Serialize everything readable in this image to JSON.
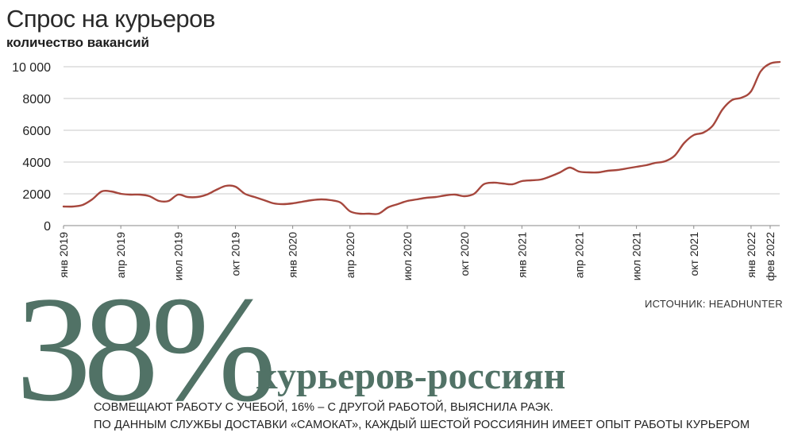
{
  "chart_data": {
    "type": "line",
    "title": "Спрос на курьеров",
    "subtitle": "количество вакансий",
    "xlabel": "",
    "ylabel": "",
    "ylim": [
      0,
      10000
    ],
    "yticks": [
      {
        "value": 0,
        "label": "0"
      },
      {
        "value": 2000,
        "label": "2000"
      },
      {
        "value": 4000,
        "label": "4000"
      },
      {
        "value": 6000,
        "label": "6000"
      },
      {
        "value": 8000,
        "label": "8000"
      },
      {
        "value": 10000,
        "label": "10 000"
      }
    ],
    "xticks": [
      {
        "x": 0,
        "label": "янв 2019"
      },
      {
        "x": 3,
        "label": "апр 2019"
      },
      {
        "x": 6,
        "label": "июл 2019"
      },
      {
        "x": 9,
        "label": "окт 2019"
      },
      {
        "x": 12,
        "label": "янв 2020"
      },
      {
        "x": 15,
        "label": "апр 2020"
      },
      {
        "x": 18,
        "label": "июл 2020"
      },
      {
        "x": 21,
        "label": "окт 2020"
      },
      {
        "x": 24,
        "label": "янв 2021"
      },
      {
        "x": 27,
        "label": "апр 2021"
      },
      {
        "x": 30,
        "label": "июл 2021"
      },
      {
        "x": 33,
        "label": "окт 2021"
      },
      {
        "x": 36,
        "label": "янв 2022"
      },
      {
        "x": 37,
        "label": "фев 2022"
      }
    ],
    "grid": true,
    "color": "#a6473d",
    "series": [
      {
        "points": [
          [
            0,
            1200
          ],
          [
            0.5,
            1200
          ],
          [
            1,
            1300
          ],
          [
            1.5,
            1650
          ],
          [
            2,
            2150
          ],
          [
            2.5,
            2150
          ],
          [
            3,
            2000
          ],
          [
            3.5,
            1950
          ],
          [
            4,
            1950
          ],
          [
            4.5,
            1850
          ],
          [
            5,
            1550
          ],
          [
            5.5,
            1550
          ],
          [
            6,
            1950
          ],
          [
            6.5,
            1800
          ],
          [
            7,
            1800
          ],
          [
            7.5,
            1950
          ],
          [
            8,
            2250
          ],
          [
            8.5,
            2500
          ],
          [
            9,
            2450
          ],
          [
            9.5,
            2000
          ],
          [
            10,
            1800
          ],
          [
            10.5,
            1600
          ],
          [
            11,
            1400
          ],
          [
            11.5,
            1350
          ],
          [
            12,
            1400
          ],
          [
            12.5,
            1500
          ],
          [
            13,
            1600
          ],
          [
            13.5,
            1650
          ],
          [
            14,
            1600
          ],
          [
            14.5,
            1450
          ],
          [
            15,
            900
          ],
          [
            15.5,
            750
          ],
          [
            16,
            750
          ],
          [
            16.5,
            750
          ],
          [
            17,
            1150
          ],
          [
            17.5,
            1350
          ],
          [
            18,
            1550
          ],
          [
            18.5,
            1650
          ],
          [
            19,
            1750
          ],
          [
            19.5,
            1800
          ],
          [
            20,
            1900
          ],
          [
            20.5,
            1950
          ],
          [
            21,
            1850
          ],
          [
            21.5,
            2000
          ],
          [
            22,
            2600
          ],
          [
            22.5,
            2700
          ],
          [
            23,
            2650
          ],
          [
            23.5,
            2600
          ],
          [
            24,
            2800
          ],
          [
            24.5,
            2850
          ],
          [
            25,
            2900
          ],
          [
            25.5,
            3100
          ],
          [
            26,
            3350
          ],
          [
            26.5,
            3650
          ],
          [
            27,
            3400
          ],
          [
            27.5,
            3350
          ],
          [
            28,
            3350
          ],
          [
            28.5,
            3450
          ],
          [
            29,
            3500
          ],
          [
            29.5,
            3600
          ],
          [
            30,
            3700
          ],
          [
            30.5,
            3800
          ],
          [
            31,
            3950
          ],
          [
            31.5,
            4050
          ],
          [
            32,
            4400
          ],
          [
            32.5,
            5200
          ],
          [
            33,
            5700
          ],
          [
            33.5,
            5850
          ],
          [
            34,
            6300
          ],
          [
            34.5,
            7300
          ],
          [
            35,
            7900
          ],
          [
            35.5,
            8050
          ],
          [
            36,
            8450
          ],
          [
            36.5,
            9700
          ],
          [
            37,
            10200
          ],
          [
            37.5,
            10300
          ]
        ]
      }
    ]
  },
  "source": "ИСТОЧНИК: HEADHUNTER",
  "highlight": {
    "number": "38%",
    "label": "курьеров-россиян"
  },
  "note_line1": "СОВМЕЩАЮТ РАБОТУ С УЧЕБОЙ, 16% – С ДРУГОЙ РАБОТОЙ, ВЫЯСНИЛА РАЭК.",
  "note_line2": "ПО ДАННЫМ СЛУЖБЫ ДОСТАВКИ «САМОКАТ», КАЖДЫЙ ШЕСТОЙ РОССИЯНИН ИМЕЕТ ОПЫТ РАБОТЫ КУРЬЕРОМ"
}
